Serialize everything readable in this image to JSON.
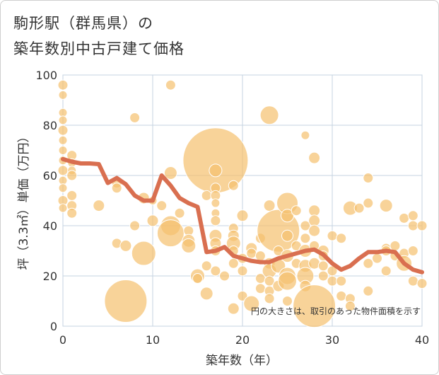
{
  "title_line1": "駒形駅（群馬県）の",
  "title_line2": "築年数別中古戸建て価格",
  "chart_data": {
    "type": "scatter",
    "xlabel": "築年数（年）",
    "ylabel": "坪（3.3㎡）単価（万円）",
    "xlim": [
      0,
      40
    ],
    "ylim": [
      0,
      100
    ],
    "xticks": [
      0,
      10,
      20,
      30,
      40
    ],
    "yticks": [
      0,
      20,
      40,
      60,
      80,
      100
    ],
    "grid": true,
    "annotation": "円の大きさは、取引のあった物件面積を示す",
    "colors": {
      "bubble": "#f5c06e",
      "line": "#d96f50",
      "grid": "#c5d3e0"
    },
    "bubbles": [
      {
        "x": 0,
        "y": 96,
        "s": 7
      },
      {
        "x": 0,
        "y": 92,
        "s": 6
      },
      {
        "x": 0,
        "y": 85,
        "s": 6
      },
      {
        "x": 0,
        "y": 82,
        "s": 6
      },
      {
        "x": 0,
        "y": 78,
        "s": 7
      },
      {
        "x": 0,
        "y": 74,
        "s": 6
      },
      {
        "x": 0,
        "y": 70,
        "s": 6
      },
      {
        "x": 0,
        "y": 66,
        "s": 6
      },
      {
        "x": 0,
        "y": 62,
        "s": 7
      },
      {
        "x": 0,
        "y": 58,
        "s": 6
      },
      {
        "x": 0,
        "y": 55,
        "s": 6
      },
      {
        "x": 0,
        "y": 50,
        "s": 7
      },
      {
        "x": 0,
        "y": 47,
        "s": 6
      },
      {
        "x": 1,
        "y": 68,
        "s": 7
      },
      {
        "x": 1,
        "y": 65,
        "s": 6
      },
      {
        "x": 1,
        "y": 62,
        "s": 6
      },
      {
        "x": 1,
        "y": 60,
        "s": 7
      },
      {
        "x": 1,
        "y": 52,
        "s": 7
      },
      {
        "x": 1,
        "y": 48,
        "s": 7
      },
      {
        "x": 1,
        "y": 45,
        "s": 7
      },
      {
        "x": 4,
        "y": 48,
        "s": 8
      },
      {
        "x": 6,
        "y": 57,
        "s": 7
      },
      {
        "x": 6,
        "y": 55,
        "s": 7
      },
      {
        "x": 6,
        "y": 33,
        "s": 7
      },
      {
        "x": 7,
        "y": 32,
        "s": 8
      },
      {
        "x": 7,
        "y": 10,
        "s": 30
      },
      {
        "x": 8,
        "y": 83,
        "s": 7
      },
      {
        "x": 8,
        "y": 40,
        "s": 7
      },
      {
        "x": 9,
        "y": 29,
        "s": 17
      },
      {
        "x": 9,
        "y": 51,
        "s": 8
      },
      {
        "x": 10,
        "y": 42,
        "s": 8
      },
      {
        "x": 10,
        "y": 50,
        "s": 6
      },
      {
        "x": 11,
        "y": 48,
        "s": 7
      },
      {
        "x": 12,
        "y": 96,
        "s": 7
      },
      {
        "x": 12,
        "y": 61,
        "s": 9
      },
      {
        "x": 12,
        "y": 40,
        "s": 14
      },
      {
        "x": 12,
        "y": 37,
        "s": 19
      },
      {
        "x": 13,
        "y": 45,
        "s": 7
      },
      {
        "x": 14,
        "y": 38,
        "s": 7
      },
      {
        "x": 14,
        "y": 34,
        "s": 9
      },
      {
        "x": 14,
        "y": 32,
        "s": 10
      },
      {
        "x": 15,
        "y": 20,
        "s": 10
      },
      {
        "x": 15,
        "y": 19,
        "s": 7
      },
      {
        "x": 16,
        "y": 24,
        "s": 7
      },
      {
        "x": 16,
        "y": 13,
        "s": 9
      },
      {
        "x": 17,
        "y": 66,
        "s": 46
      },
      {
        "x": 17,
        "y": 62,
        "s": 9
      },
      {
        "x": 16,
        "y": 52,
        "s": 7
      },
      {
        "x": 17,
        "y": 55,
        "s": 7
      },
      {
        "x": 17,
        "y": 52,
        "s": 7
      },
      {
        "x": 17,
        "y": 49,
        "s": 6
      },
      {
        "x": 17,
        "y": 45,
        "s": 6
      },
      {
        "x": 17,
        "y": 42,
        "s": 7
      },
      {
        "x": 17,
        "y": 36,
        "s": 9
      },
      {
        "x": 17,
        "y": 33,
        "s": 8
      },
      {
        "x": 17,
        "y": 30,
        "s": 7
      },
      {
        "x": 17,
        "y": 22,
        "s": 7
      },
      {
        "x": 18,
        "y": 20,
        "s": 7
      },
      {
        "x": 19,
        "y": 56,
        "s": 7
      },
      {
        "x": 19,
        "y": 39,
        "s": 7
      },
      {
        "x": 19,
        "y": 36,
        "s": 8
      },
      {
        "x": 19,
        "y": 33,
        "s": 10
      },
      {
        "x": 19,
        "y": 30,
        "s": 7
      },
      {
        "x": 19,
        "y": 25,
        "s": 7
      },
      {
        "x": 19,
        "y": 7,
        "s": 8
      },
      {
        "x": 20,
        "y": 44,
        "s": 8
      },
      {
        "x": 20,
        "y": 27,
        "s": 7
      },
      {
        "x": 20,
        "y": 22,
        "s": 7
      },
      {
        "x": 20,
        "y": 12,
        "s": 7
      },
      {
        "x": 21,
        "y": 31,
        "s": 8
      },
      {
        "x": 21,
        "y": 29,
        "s": 7
      },
      {
        "x": 21,
        "y": 9,
        "s": 11
      },
      {
        "x": 22,
        "y": 35,
        "s": 7
      },
      {
        "x": 22,
        "y": 28,
        "s": 7
      },
      {
        "x": 22,
        "y": 19,
        "s": 7
      },
      {
        "x": 22,
        "y": 15,
        "s": 7
      },
      {
        "x": 23,
        "y": 84,
        "s": 13
      },
      {
        "x": 23,
        "y": 48,
        "s": 8
      },
      {
        "x": 23,
        "y": 25,
        "s": 8
      },
      {
        "x": 23,
        "y": 22,
        "s": 10
      },
      {
        "x": 23,
        "y": 18,
        "s": 7
      },
      {
        "x": 23,
        "y": 14,
        "s": 7
      },
      {
        "x": 23,
        "y": 11,
        "s": 7
      },
      {
        "x": 24,
        "y": 38,
        "s": 30
      },
      {
        "x": 24,
        "y": 30,
        "s": 7
      },
      {
        "x": 24,
        "y": 24,
        "s": 10
      },
      {
        "x": 24,
        "y": 16,
        "s": 8
      },
      {
        "x": 25,
        "y": 49,
        "s": 15
      },
      {
        "x": 25,
        "y": 44,
        "s": 9
      },
      {
        "x": 25,
        "y": 36,
        "s": 8
      },
      {
        "x": 25,
        "y": 28,
        "s": 9
      },
      {
        "x": 25,
        "y": 20,
        "s": 12
      },
      {
        "x": 25,
        "y": 18,
        "s": 13
      },
      {
        "x": 25,
        "y": 10,
        "s": 7
      },
      {
        "x": 26,
        "y": 46,
        "s": 7
      },
      {
        "x": 26,
        "y": 32,
        "s": 7
      },
      {
        "x": 26,
        "y": 25,
        "s": 7
      },
      {
        "x": 27,
        "y": 76,
        "s": 6
      },
      {
        "x": 27,
        "y": 40,
        "s": 7
      },
      {
        "x": 27,
        "y": 35,
        "s": 7
      },
      {
        "x": 27,
        "y": 30,
        "s": 9
      },
      {
        "x": 27,
        "y": 24,
        "s": 9
      },
      {
        "x": 27,
        "y": 20,
        "s": 12
      },
      {
        "x": 27,
        "y": 16,
        "s": 8
      },
      {
        "x": 28,
        "y": 67,
        "s": 8
      },
      {
        "x": 28,
        "y": 46,
        "s": 8
      },
      {
        "x": 28,
        "y": 42,
        "s": 8
      },
      {
        "x": 28,
        "y": 38,
        "s": 8
      },
      {
        "x": 28,
        "y": 32,
        "s": 7
      },
      {
        "x": 28,
        "y": 25,
        "s": 8
      },
      {
        "x": 28,
        "y": 8,
        "s": 30
      },
      {
        "x": 29,
        "y": 30,
        "s": 8
      },
      {
        "x": 29,
        "y": 28,
        "s": 7
      },
      {
        "x": 29,
        "y": 24,
        "s": 7
      },
      {
        "x": 29,
        "y": 20,
        "s": 7
      },
      {
        "x": 30,
        "y": 36,
        "s": 7
      },
      {
        "x": 30,
        "y": 22,
        "s": 7
      },
      {
        "x": 30,
        "y": 18,
        "s": 7
      },
      {
        "x": 31,
        "y": 35,
        "s": 7
      },
      {
        "x": 31,
        "y": 18,
        "s": 7
      },
      {
        "x": 31,
        "y": 12,
        "s": 7
      },
      {
        "x": 32,
        "y": 47,
        "s": 10
      },
      {
        "x": 32,
        "y": 11,
        "s": 7
      },
      {
        "x": 32,
        "y": 8,
        "s": 7
      },
      {
        "x": 33,
        "y": 47,
        "s": 7
      },
      {
        "x": 34,
        "y": 59,
        "s": 7
      },
      {
        "x": 34,
        "y": 49,
        "s": 7
      },
      {
        "x": 34,
        "y": 25,
        "s": 7
      },
      {
        "x": 34,
        "y": 14,
        "s": 7
      },
      {
        "x": 35,
        "y": 27,
        "s": 7
      },
      {
        "x": 36,
        "y": 48,
        "s": 9
      },
      {
        "x": 36,
        "y": 31,
        "s": 7
      },
      {
        "x": 36,
        "y": 30,
        "s": 7
      },
      {
        "x": 36,
        "y": 22,
        "s": 7
      },
      {
        "x": 37,
        "y": 32,
        "s": 7
      },
      {
        "x": 37,
        "y": 28,
        "s": 7
      },
      {
        "x": 38,
        "y": 43,
        "s": 7
      },
      {
        "x": 38,
        "y": 29,
        "s": 7
      },
      {
        "x": 38,
        "y": 25,
        "s": 11
      },
      {
        "x": 39,
        "y": 44,
        "s": 7
      },
      {
        "x": 39,
        "y": 40,
        "s": 7
      },
      {
        "x": 39,
        "y": 30,
        "s": 7
      },
      {
        "x": 39,
        "y": 18,
        "s": 7
      },
      {
        "x": 40,
        "y": 40,
        "s": 7
      },
      {
        "x": 40,
        "y": 17,
        "s": 7
      }
    ],
    "line": {
      "x": [
        0,
        1,
        2,
        3,
        4,
        5,
        6,
        7,
        8,
        9,
        10,
        11,
        12,
        13,
        14,
        15,
        16,
        17,
        18,
        19,
        20,
        21,
        22,
        23,
        24,
        25,
        26,
        27,
        28,
        29,
        30,
        31,
        32,
        33,
        34,
        35,
        36,
        37,
        38,
        39,
        40
      ],
      "y": [
        66.5,
        65.5,
        64.8,
        64.8,
        64.5,
        57,
        59,
        56.5,
        52,
        50,
        50,
        60,
        56,
        51,
        49,
        47.5,
        29.5,
        30,
        31.5,
        28,
        27,
        26,
        25.5,
        25.5,
        27,
        28,
        29,
        30,
        30.5,
        28.5,
        25,
        22.5,
        24,
        27,
        29.5,
        29.5,
        30,
        29.5,
        25,
        22.5,
        21.5
      ]
    }
  }
}
